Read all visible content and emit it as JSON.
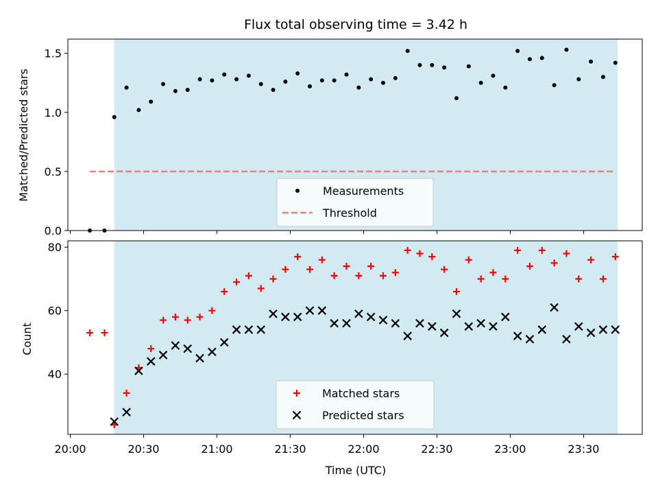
{
  "chart_data": [
    {
      "type": "scatter",
      "title": "Flux total observing time = 3.42 h",
      "xlabel": "",
      "ylabel": "Matched/Predicted stars",
      "ylim": [
        0,
        1.62
      ],
      "yticks": [
        "0.0",
        "0.5",
        "1.0",
        "1.5"
      ],
      "ytick_values": [
        0,
        0.5,
        1.0,
        1.5
      ],
      "legend_position": "lower-center",
      "shaded_region": {
        "start": "20:18",
        "end": "23:44",
        "color": "#add8e6"
      },
      "series": [
        {
          "name": "Measurements",
          "marker": "dot",
          "color": "#000000",
          "x": [
            "20:08",
            "20:14",
            "20:18",
            "20:23",
            "20:28",
            "20:33",
            "20:38",
            "20:43",
            "20:48",
            "20:53",
            "20:58",
            "21:03",
            "21:08",
            "21:13",
            "21:18",
            "21:23",
            "21:28",
            "21:33",
            "21:38",
            "21:43",
            "21:48",
            "21:53",
            "21:58",
            "22:03",
            "22:08",
            "22:13",
            "22:18",
            "22:23",
            "22:28",
            "22:33",
            "22:38",
            "22:43",
            "22:48",
            "22:53",
            "22:58",
            "23:03",
            "23:08",
            "23:13",
            "23:18",
            "23:23",
            "23:28",
            "23:33",
            "23:38",
            "23:43"
          ],
          "y": [
            0.0,
            0.0,
            0.96,
            1.21,
            1.02,
            1.09,
            1.24,
            1.18,
            1.19,
            1.28,
            1.27,
            1.32,
            1.28,
            1.31,
            1.24,
            1.19,
            1.26,
            1.33,
            1.22,
            1.27,
            1.27,
            1.32,
            1.21,
            1.28,
            1.25,
            1.29,
            1.52,
            1.4,
            1.4,
            1.38,
            1.12,
            1.39,
            1.25,
            1.31,
            1.21,
            1.52,
            1.45,
            1.46,
            1.23,
            1.53,
            1.28,
            1.43,
            1.3,
            1.42
          ]
        },
        {
          "name": "Threshold",
          "marker": "dashed-line",
          "color": "#f08080",
          "x": [
            "20:08",
            "23:43"
          ],
          "y": [
            0.5,
            0.5
          ]
        }
      ]
    },
    {
      "type": "scatter",
      "title": "",
      "xlabel": "Time (UTC)",
      "ylabel": "Count",
      "xlim": [
        "19:59",
        "23:54"
      ],
      "ylim": [
        21,
        82
      ],
      "xticks": [
        "20:00",
        "20:30",
        "21:00",
        "21:30",
        "22:00",
        "22:30",
        "23:00",
        "23:30"
      ],
      "yticks": [
        "40",
        "60",
        "80"
      ],
      "ytick_values": [
        40,
        60,
        80
      ],
      "legend_position": "lower-center",
      "shaded_region": {
        "start": "20:18",
        "end": "23:44",
        "color": "#add8e6"
      },
      "series": [
        {
          "name": "Matched stars",
          "marker": "plus",
          "color": "#ff0000",
          "x": [
            "20:08",
            "20:14",
            "20:18",
            "20:23",
            "20:28",
            "20:33",
            "20:38",
            "20:43",
            "20:48",
            "20:53",
            "20:58",
            "21:03",
            "21:08",
            "21:13",
            "21:18",
            "21:23",
            "21:28",
            "21:33",
            "21:38",
            "21:43",
            "21:48",
            "21:53",
            "21:58",
            "22:03",
            "22:08",
            "22:13",
            "22:18",
            "22:23",
            "22:28",
            "22:33",
            "22:38",
            "22:43",
            "22:48",
            "22:53",
            "22:58",
            "23:03",
            "23:08",
            "23:13",
            "23:18",
            "23:23",
            "23:28",
            "23:33",
            "23:38",
            "23:43"
          ],
          "y": [
            53,
            53,
            24,
            34,
            42,
            48,
            57,
            58,
            57,
            58,
            60,
            66,
            69,
            71,
            67,
            70,
            73,
            77,
            73,
            76,
            71,
            74,
            71,
            74,
            71,
            72,
            79,
            78,
            77,
            73,
            66,
            76,
            70,
            72,
            70,
            79,
            74,
            79,
            75,
            78,
            70,
            76,
            70,
            77
          ]
        },
        {
          "name": "Predicted stars",
          "marker": "cross",
          "color": "#000000",
          "x": [
            "20:18",
            "20:23",
            "20:28",
            "20:33",
            "20:38",
            "20:43",
            "20:48",
            "20:53",
            "20:58",
            "21:03",
            "21:08",
            "21:13",
            "21:18",
            "21:23",
            "21:28",
            "21:33",
            "21:38",
            "21:43",
            "21:48",
            "21:53",
            "21:58",
            "22:03",
            "22:08",
            "22:13",
            "22:18",
            "22:23",
            "22:28",
            "22:33",
            "22:38",
            "22:43",
            "22:48",
            "22:53",
            "22:58",
            "23:03",
            "23:08",
            "23:13",
            "23:18",
            "23:23",
            "23:28",
            "23:33",
            "23:38",
            "23:43"
          ],
          "y": [
            25,
            28,
            41,
            44,
            46,
            49,
            48,
            45,
            47,
            50,
            54,
            54,
            54,
            59,
            58,
            58,
            60,
            60,
            56,
            56,
            59,
            58,
            57,
            56,
            52,
            56,
            55,
            53,
            59,
            55,
            56,
            55,
            58,
            52,
            51,
            54,
            61,
            51,
            55,
            53,
            54,
            54
          ]
        }
      ]
    }
  ]
}
